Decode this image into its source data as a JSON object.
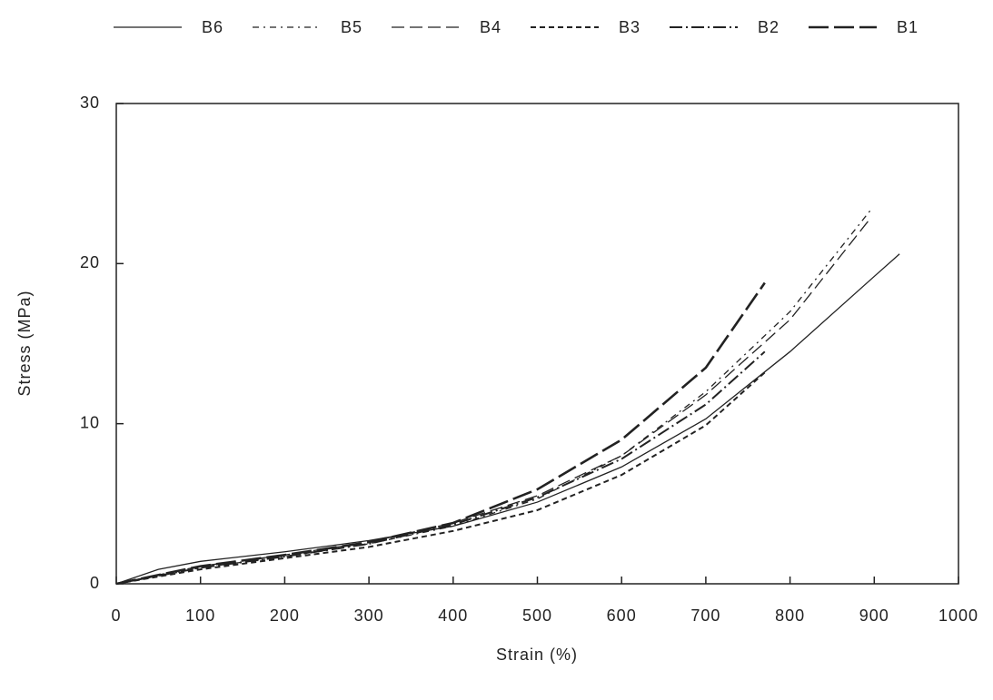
{
  "chart_data": {
    "type": "line",
    "xlabel": "Strain (%)",
    "ylabel": "Stress (MPa)",
    "xlim": [
      0,
      1000
    ],
    "xticks": [
      0,
      100,
      200,
      300,
      400,
      500,
      600,
      700,
      800,
      900,
      1000
    ],
    "ylim": [
      0,
      30
    ],
    "yticks": [
      0,
      10,
      20,
      30
    ],
    "legend": "top",
    "series": [
      {
        "name": "B6",
        "color": "#222222",
        "dash": "none",
        "width": 1.3,
        "x": [
          0,
          50,
          100,
          200,
          300,
          400,
          500,
          600,
          700,
          800,
          900,
          930
        ],
        "values": [
          0,
          0.9,
          1.4,
          2.0,
          2.7,
          3.6,
          5.1,
          7.3,
          10.3,
          14.5,
          19.2,
          20.6
        ]
      },
      {
        "name": "B5",
        "color": "#222222",
        "dash": "7,5,2,5",
        "width": 1.3,
        "x": [
          0,
          100,
          200,
          300,
          400,
          500,
          600,
          700,
          800,
          895
        ],
        "values": [
          0,
          1.0,
          1.7,
          2.5,
          3.6,
          5.3,
          8.0,
          12.0,
          17.0,
          23.3
        ]
      },
      {
        "name": "B4",
        "color": "#222222",
        "dash": "14,6",
        "width": 1.3,
        "x": [
          0,
          100,
          200,
          300,
          400,
          500,
          600,
          700,
          800,
          895
        ],
        "values": [
          0,
          1.1,
          1.8,
          2.6,
          3.8,
          5.5,
          8.0,
          11.8,
          16.5,
          22.8
        ]
      },
      {
        "name": "B3",
        "color": "#222222",
        "dash": "6,4",
        "width": 2,
        "x": [
          0,
          100,
          200,
          300,
          400,
          500,
          600,
          700,
          770
        ],
        "values": [
          0,
          0.9,
          1.6,
          2.3,
          3.3,
          4.6,
          6.8,
          9.9,
          13.2
        ]
      },
      {
        "name": "B2",
        "color": "#222222",
        "dash": "14,4,2,4",
        "width": 2,
        "x": [
          0,
          100,
          200,
          300,
          400,
          500,
          600,
          700,
          770
        ],
        "values": [
          0,
          1.0,
          1.7,
          2.5,
          3.7,
          5.4,
          7.8,
          11.2,
          14.5
        ]
      },
      {
        "name": "B1",
        "color": "#222222",
        "dash": "22,6",
        "width": 2.6,
        "x": [
          0,
          100,
          200,
          300,
          400,
          500,
          600,
          700,
          770
        ],
        "values": [
          0,
          1.1,
          1.8,
          2.6,
          3.8,
          5.9,
          9.0,
          13.5,
          18.8
        ]
      }
    ]
  }
}
